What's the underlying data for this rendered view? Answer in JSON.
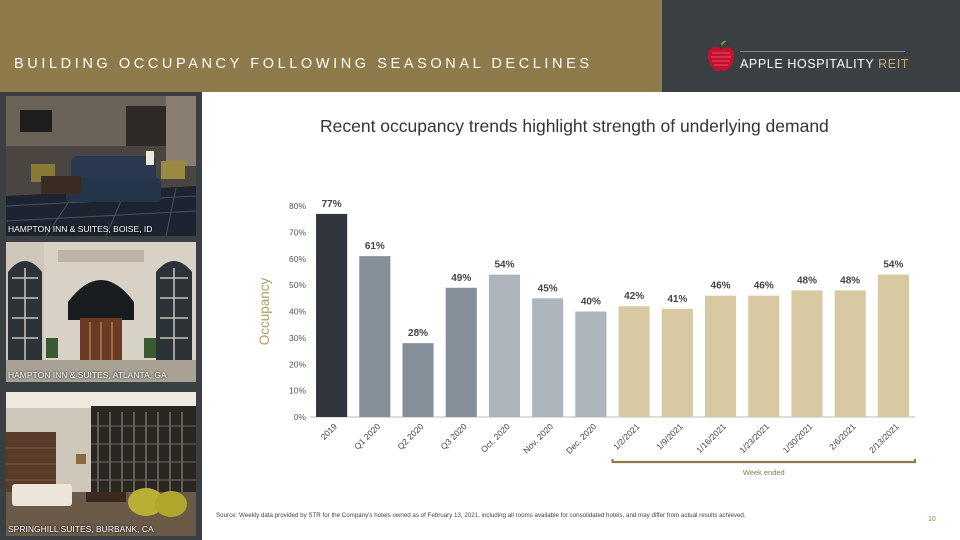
{
  "header": {
    "title": "BUILDING OCCUPANCY FOLLOWING SEASONAL DECLINES",
    "logo_main": "APPLE HOSPITALITY",
    "logo_reit": "REIT"
  },
  "photos": [
    {
      "caption": "HAMPTON INN & SUITES, BOISE, ID"
    },
    {
      "caption": "HAMPTON INN & SUITES, ATLANTA, GA"
    },
    {
      "caption": "SPRINGHILL SUITES, BURBANK, CA"
    }
  ],
  "headline": "Recent occupancy trends highlight strength of underlying demand",
  "chart_data": {
    "type": "bar",
    "ylabel": "Occupancy",
    "ylim": [
      0,
      80
    ],
    "yticks": [
      "0%",
      "10%",
      "20%",
      "30%",
      "40%",
      "50%",
      "60%",
      "70%",
      "80%"
    ],
    "categories": [
      "2019",
      "Q1 2020",
      "Q2 2020",
      "Q3 2020",
      "Oct. 2020",
      "Nov. 2020",
      "Dec. 2020",
      "1/2/2021",
      "1/9/2021",
      "1/16/2021",
      "1/23/2021",
      "1/30/2021",
      "2/6/2021",
      "2/13/2021"
    ],
    "values": [
      77,
      61,
      28,
      49,
      54,
      45,
      40,
      42,
      41,
      46,
      46,
      48,
      48,
      54
    ],
    "labels": [
      "77%",
      "61%",
      "28%",
      "49%",
      "54%",
      "45%",
      "40%",
      "42%",
      "41%",
      "46%",
      "46%",
      "48%",
      "48%",
      "54%"
    ],
    "colors": [
      "#2f353b",
      "#858f99",
      "#858f99",
      "#858f99",
      "#aeb4bb",
      "#aeb4bb",
      "#aeb4bb",
      "#d8c9a3",
      "#d8c9a3",
      "#d8c9a3",
      "#d8c9a3",
      "#d8c9a3",
      "#d8c9a3",
      "#d8c9a3"
    ],
    "bracket_label": "Week ended",
    "grid": false
  },
  "footer": {
    "source": "Source:  Weekly data provided by STR for the Company's hotels owned as of February 13, 2021, including all rooms available for consolidated hotels, and may differ from actual results achieved.",
    "page": "10"
  },
  "colors": {
    "gold": "#8f7a4c",
    "charcoal": "#3a3f44",
    "ylabel": "#b09a63"
  }
}
